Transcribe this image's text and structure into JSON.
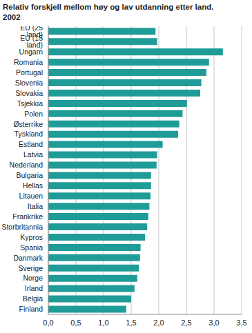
{
  "chart_data": {
    "type": "bar",
    "orientation": "horizontal",
    "title": "Relativ forskjell mellom høy og lav utdanning etter land.\n2002",
    "categories": [
      "EU (25 land)",
      "EU (15 land)",
      "Ungarn",
      "Romania",
      "Portugal",
      "Slovenia",
      "Slovakia",
      "Tsjekkia",
      "Polen",
      "Østerrike",
      "Tyskland",
      "Estland",
      "Latvia",
      "Nederland",
      "Bulgaria",
      "Hellas",
      "Litauen",
      "Italia",
      "Frankrike",
      "Storbritannia",
      "Kypros",
      "Spania",
      "Danmark",
      "Sverige",
      "Norge",
      "Irland",
      "Belgia",
      "Finland"
    ],
    "values": [
      1.94,
      1.97,
      3.16,
      2.91,
      2.86,
      2.77,
      2.75,
      2.51,
      2.43,
      2.37,
      2.35,
      2.07,
      1.97,
      1.96,
      1.86,
      1.86,
      1.85,
      1.83,
      1.81,
      1.79,
      1.75,
      1.67,
      1.66,
      1.64,
      1.61,
      1.56,
      1.5,
      1.41
    ],
    "color": "#1f9c98",
    "xlim": [
      0,
      3.5
    ],
    "xticks": [
      {
        "value": 0,
        "label": "0,0"
      },
      {
        "value": 0.5,
        "label": "0,5"
      },
      {
        "value": 1,
        "label": "1,0"
      },
      {
        "value": 1.5,
        "label": "1,5"
      },
      {
        "value": 2,
        "label": "2,0"
      },
      {
        "value": 2.5,
        "label": "2,5"
      },
      {
        "value": 3,
        "label": "3,0"
      },
      {
        "value": 3.5,
        "label": "3,5"
      }
    ],
    "grid": true
  }
}
